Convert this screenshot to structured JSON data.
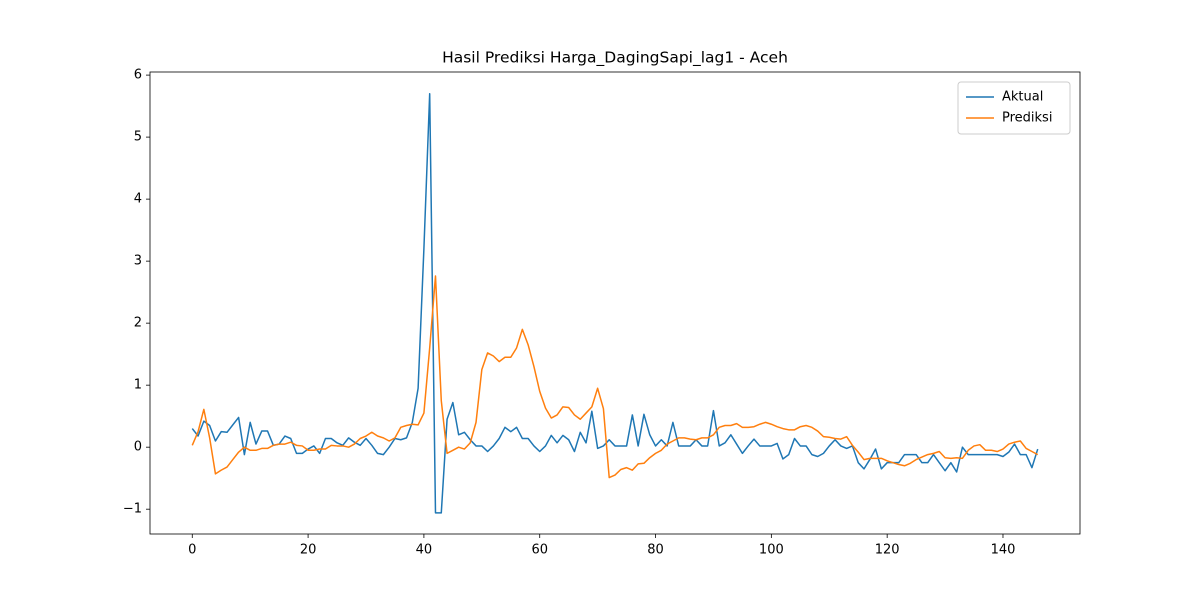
{
  "chart_data": {
    "type": "line",
    "title": "Hasil Prediksi Harga_DagingSapi_lag1 - Aceh",
    "x": [
      0,
      1,
      2,
      3,
      4,
      5,
      6,
      7,
      8,
      9,
      10,
      11,
      12,
      13,
      14,
      15,
      16,
      17,
      18,
      19,
      20,
      21,
      22,
      23,
      24,
      25,
      26,
      27,
      28,
      29,
      30,
      31,
      32,
      33,
      34,
      35,
      36,
      37,
      38,
      39,
      40,
      41,
      42,
      43,
      44,
      45,
      46,
      47,
      48,
      49,
      50,
      51,
      52,
      53,
      54,
      55,
      56,
      57,
      58,
      59,
      60,
      61,
      62,
      63,
      64,
      65,
      66,
      67,
      68,
      69,
      70,
      71,
      72,
      73,
      74,
      75,
      76,
      77,
      78,
      79,
      80,
      81,
      82,
      83,
      84,
      85,
      86,
      87,
      88,
      89,
      90,
      91,
      92,
      93,
      94,
      95,
      96,
      97,
      98,
      99,
      100,
      101,
      102,
      103,
      104,
      105,
      106,
      107,
      108,
      109,
      110,
      111,
      112,
      113,
      114,
      115,
      116,
      117,
      118,
      119,
      120,
      121,
      122,
      123,
      124,
      125,
      126,
      127,
      128,
      129,
      130,
      131,
      132,
      133,
      134,
      135,
      136,
      137,
      138,
      139,
      140,
      141,
      142,
      143,
      144,
      145,
      146
    ],
    "series": [
      {
        "name": "Aktual",
        "color": "#1f77b4",
        "values": [
          0.3,
          0.18,
          0.42,
          0.35,
          0.1,
          0.25,
          0.24,
          0.36,
          0.48,
          -0.12,
          0.4,
          0.05,
          0.26,
          0.26,
          0.03,
          0.05,
          0.18,
          0.14,
          -0.1,
          -0.1,
          -0.03,
          0.02,
          -0.1,
          0.14,
          0.14,
          0.07,
          0.03,
          0.15,
          0.08,
          0.03,
          0.14,
          0.03,
          -0.1,
          -0.12,
          0.0,
          0.14,
          0.12,
          0.15,
          0.4,
          0.95,
          3.2,
          5.7,
          -1.06,
          -1.06,
          0.45,
          0.72,
          0.2,
          0.24,
          0.12,
          0.02,
          0.02,
          -0.07,
          0.02,
          0.14,
          0.32,
          0.25,
          0.32,
          0.14,
          0.14,
          0.02,
          -0.07,
          0.02,
          0.19,
          0.07,
          0.19,
          0.12,
          -0.07,
          0.24,
          0.07,
          0.58,
          -0.02,
          0.02,
          0.12,
          0.02,
          0.02,
          0.02,
          0.52,
          0.02,
          0.53,
          0.2,
          0.02,
          0.12,
          0.02,
          0.4,
          0.02,
          0.02,
          0.02,
          0.12,
          0.02,
          0.02,
          0.59,
          0.02,
          0.07,
          0.2,
          0.05,
          -0.1,
          0.02,
          0.13,
          0.02,
          0.02,
          0.02,
          0.06,
          -0.19,
          -0.12,
          0.14,
          0.02,
          0.02,
          -0.12,
          -0.15,
          -0.1,
          0.02,
          0.12,
          0.02,
          -0.02,
          0.02,
          -0.25,
          -0.35,
          -0.2,
          -0.03,
          -0.35,
          -0.25,
          -0.25,
          -0.25,
          -0.12,
          -0.12,
          -0.12,
          -0.25,
          -0.25,
          -0.12,
          -0.25,
          -0.38,
          -0.25,
          -0.4,
          0.0,
          -0.12,
          -0.12,
          -0.12,
          -0.12,
          -0.12,
          -0.12,
          -0.15,
          -0.08,
          0.05,
          -0.12,
          -0.12,
          -0.33,
          -0.03
        ]
      },
      {
        "name": "Prediksi",
        "color": "#ff7f0e",
        "values": [
          0.03,
          0.25,
          0.61,
          0.15,
          -0.43,
          -0.37,
          -0.32,
          -0.2,
          -0.08,
          0.0,
          -0.05,
          -0.05,
          -0.02,
          -0.02,
          0.03,
          0.05,
          0.05,
          0.08,
          0.03,
          0.02,
          -0.05,
          -0.05,
          -0.03,
          -0.03,
          0.03,
          0.02,
          0.02,
          0.0,
          0.05,
          0.14,
          0.18,
          0.24,
          0.18,
          0.15,
          0.1,
          0.15,
          0.32,
          0.35,
          0.37,
          0.36,
          0.55,
          1.6,
          2.76,
          0.75,
          -0.1,
          -0.05,
          0.0,
          -0.03,
          0.07,
          0.4,
          1.25,
          1.52,
          1.47,
          1.38,
          1.45,
          1.45,
          1.6,
          1.9,
          1.65,
          1.3,
          0.9,
          0.63,
          0.47,
          0.52,
          0.65,
          0.64,
          0.52,
          0.45,
          0.55,
          0.65,
          0.95,
          0.62,
          -0.49,
          -0.45,
          -0.36,
          -0.33,
          -0.37,
          -0.27,
          -0.26,
          -0.17,
          -0.1,
          -0.05,
          0.05,
          0.1,
          0.15,
          0.15,
          0.13,
          0.12,
          0.15,
          0.15,
          0.2,
          0.32,
          0.35,
          0.35,
          0.38,
          0.32,
          0.32,
          0.33,
          0.37,
          0.4,
          0.37,
          0.33,
          0.3,
          0.28,
          0.28,
          0.33,
          0.35,
          0.32,
          0.26,
          0.17,
          0.16,
          0.14,
          0.13,
          0.17,
          0.03,
          -0.08,
          -0.2,
          -0.18,
          -0.18,
          -0.18,
          -0.22,
          -0.25,
          -0.28,
          -0.3,
          -0.26,
          -0.2,
          -0.16,
          -0.12,
          -0.1,
          -0.07,
          -0.17,
          -0.18,
          -0.17,
          -0.18,
          -0.05,
          0.02,
          0.04,
          -0.05,
          -0.05,
          -0.07,
          -0.03,
          0.05,
          0.08,
          0.1,
          -0.02,
          -0.07,
          -0.12
        ]
      }
    ],
    "xlim": [
      -7.3,
      153.3
    ],
    "xticks": [
      0,
      20,
      40,
      60,
      80,
      100,
      120,
      140
    ],
    "ylim": [
      -1.4,
      6.05
    ],
    "yticks": [
      {
        "value": -1,
        "label": "−1"
      },
      0,
      1,
      2,
      3,
      4,
      5,
      6
    ],
    "legend": "upper right"
  }
}
